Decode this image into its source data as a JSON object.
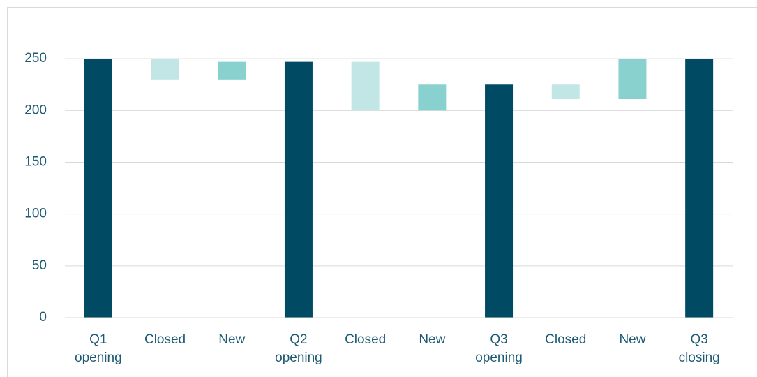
{
  "chart_data": {
    "type": "waterfall",
    "categories": [
      "Q1 opening",
      "Closed",
      "New",
      "Q2 opening",
      "Closed",
      "New",
      "Q3 opening",
      "Closed",
      "New",
      "Q3 closing"
    ],
    "values": [
      250,
      -20,
      17,
      247,
      -47,
      25,
      225,
      -14,
      39,
      250
    ],
    "measure": [
      "absolute",
      "relative",
      "relative",
      "absolute",
      "relative",
      "relative",
      "absolute",
      "relative",
      "relative",
      "absolute"
    ],
    "colors": [
      "#004a63",
      "#c2e6e6",
      "#88d1ce",
      "#004a63",
      "#c2e6e6",
      "#88d1ce",
      "#004a63",
      "#c2e6e6",
      "#88d1ce",
      "#004a63"
    ],
    "ylim": [
      0,
      300
    ],
    "yticks": [
      0,
      50,
      100,
      150,
      200,
      250
    ],
    "grid": true
  }
}
